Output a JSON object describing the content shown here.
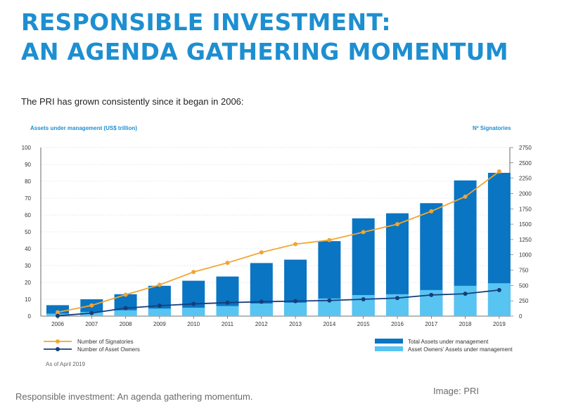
{
  "header": {
    "title_line1": "RESPONSIBLE INVESTMENT:",
    "title_line2": "AN AGENDA GATHERING MOMENTUM",
    "intro": "The PRI has grown consistently since it began in 2006:"
  },
  "chart_data": {
    "type": "bar",
    "ylabel_left": "Assets under management (US$ trillion)",
    "ylabel_right": "Nº Signatories",
    "categories": [
      "2006",
      "2007",
      "2008",
      "2009",
      "2010",
      "2011",
      "2012",
      "2013",
      "2014",
      "2015",
      "2016",
      "2017",
      "2018",
      "2019"
    ],
    "ylim_left": [
      0,
      100
    ],
    "ylim_right": [
      0,
      2750
    ],
    "left_ticks": [
      0,
      10,
      20,
      30,
      40,
      50,
      60,
      70,
      80,
      90,
      100
    ],
    "right_ticks": [
      0,
      250,
      500,
      750,
      1000,
      1250,
      1500,
      1750,
      2000,
      2250,
      2500,
      2750
    ],
    "series": [
      {
        "name": "Total Assets under management",
        "kind": "bar",
        "axis": "left",
        "color": "#0a75c2",
        "values": [
          6.5,
          10,
          13,
          18,
          21,
          23.5,
          31.5,
          33.5,
          44.5,
          58,
          61,
          67,
          80.5,
          85
        ]
      },
      {
        "name": "Asset Owners' Assets under management",
        "kind": "bar",
        "axis": "left",
        "color": "#58c4f2",
        "values": [
          1.5,
          2.5,
          3.5,
          4.5,
          5,
          6,
          7.5,
          8,
          10.5,
          12.5,
          13,
          15.5,
          18,
          19.5
        ]
      },
      {
        "name": "Number of Signatories",
        "kind": "line",
        "axis": "right",
        "color": "#f2a532",
        "values": [
          63,
          175,
          350,
          510,
          720,
          870,
          1040,
          1175,
          1240,
          1370,
          1500,
          1710,
          1950,
          2360
        ]
      },
      {
        "name": "Number of Asset Owners",
        "kind": "line",
        "axis": "right",
        "color": "#163d7a",
        "values": [
          5,
          50,
          130,
          170,
          200,
          220,
          235,
          245,
          255,
          275,
          295,
          345,
          365,
          425
        ]
      }
    ],
    "note": "As of April 2019",
    "grid": true
  },
  "footer": {
    "caption": "Responsible investment: An agenda gathering momentum.",
    "credit": "Image: PRI"
  }
}
